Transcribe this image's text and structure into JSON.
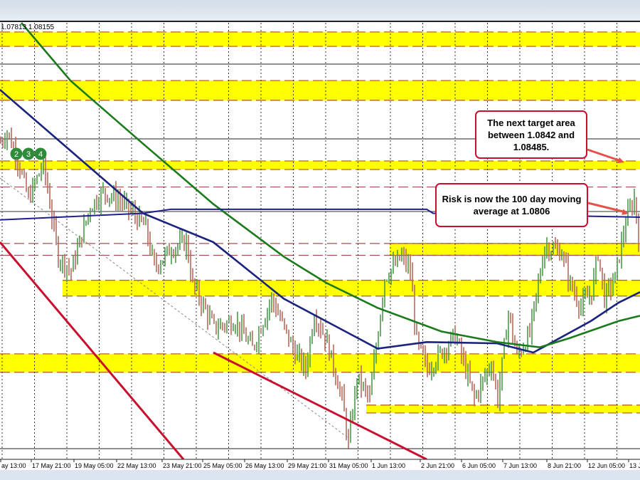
{
  "header": {
    "ohlc_text": "1.07813 1.08155"
  },
  "colors": {
    "band": "#ffff00",
    "level_line": "#c0392b",
    "ma_blue": "#1a237e",
    "ma_green": "#1b7a1b",
    "ma_100day": "#1f1f8f",
    "trendline": "#c8102e",
    "bull": "#4c9a4c",
    "bear": "#b86a5e"
  },
  "annotations": [
    {
      "text": "The next target area between 1.0842 and 1.08485.",
      "level": 1.0845
    },
    {
      "text": "Risk is now the 100 day moving average at 1.0806",
      "level": 1.0806
    }
  ],
  "markers": [
    "2",
    "3",
    "4"
  ],
  "chart_data": {
    "type": "candlestick",
    "title": "",
    "x_tick_labels": [
      "ay 13:00",
      "17 May 21:00",
      "19 May 05:00",
      "22 May 13:00",
      "23 May 21:00",
      "25 May 05:00",
      "26 May 13:00",
      "29 May 21:00",
      "31 May 05:00",
      "1 Jun 13:00",
      "2 Jun 21:00",
      "6 Jun 05:00",
      "7 Jun 13:00",
      "8 Jun 21:00",
      "12 Jun 05:00",
      "13 J"
    ],
    "ylim": [
      1.0622,
      1.0954
    ],
    "grid": true,
    "close_path": [
      [
        0,
        1.0863
      ],
      [
        3,
        1.0871
      ],
      [
        7,
        1.0855
      ],
      [
        13,
        1.082
      ],
      [
        20,
        1.0847
      ],
      [
        27,
        1.0776
      ],
      [
        33,
        1.0765
      ],
      [
        42,
        1.0814
      ],
      [
        48,
        1.0825
      ],
      [
        55,
        1.082
      ],
      [
        62,
        1.0809
      ],
      [
        68,
        1.0798
      ],
      [
        72,
        1.0768
      ],
      [
        80,
        1.0782
      ],
      [
        87,
        1.0787
      ],
      [
        90,
        1.0755
      ],
      [
        100,
        1.0722
      ],
      [
        110,
        1.0727
      ],
      [
        118,
        1.0706
      ],
      [
        127,
        1.0744
      ],
      [
        137,
        1.0706
      ],
      [
        143,
        1.069
      ],
      [
        147,
        1.0733
      ],
      [
        153,
        1.0711
      ],
      [
        160,
        1.0668
      ],
      [
        163,
        1.0633
      ],
      [
        167,
        1.0684
      ],
      [
        173,
        1.0668
      ],
      [
        180,
        1.076
      ],
      [
        188,
        1.0776
      ],
      [
        192,
        1.0765
      ],
      [
        195,
        1.0711
      ],
      [
        200,
        1.069
      ],
      [
        208,
        1.0706
      ],
      [
        213,
        1.0717
      ],
      [
        222,
        1.0668
      ],
      [
        230,
        1.0695
      ],
      [
        233,
        1.0668
      ],
      [
        238,
        1.0733
      ],
      [
        242,
        1.07
      ],
      [
        248,
        1.0717
      ],
      [
        255,
        1.0784
      ],
      [
        263,
        1.0779
      ],
      [
        267,
        1.0755
      ],
      [
        272,
        1.0738
      ],
      [
        277,
        1.0749
      ],
      [
        280,
        1.0779
      ],
      [
        283,
        1.0744
      ],
      [
        288,
        1.076
      ],
      [
        293,
        1.0803
      ],
      [
        297,
        1.082
      ],
      [
        299,
        1.0792
      ]
    ],
    "support_resistance_bands": [
      [
        1.0936,
        1.0947
      ],
      [
        1.0895,
        1.091
      ],
      [
        1.08423,
        1.08488
      ],
      [
        1.0777,
        1.0786
      ],
      [
        1.0746,
        1.0758
      ],
      [
        1.0688,
        1.0702
      ],
      [
        1.0657,
        1.0663
      ]
    ],
    "dashed_levels": [
      1.0829,
      1.0786,
      1.0777
    ],
    "moving_averages": [
      {
        "color": "blue",
        "values": [
          [
            0,
            1.0903
          ],
          [
            67,
            1.0809
          ],
          [
            100,
            1.0787
          ],
          [
            133,
            1.0744
          ],
          [
            177,
            1.0706
          ],
          [
            200,
            1.0711
          ],
          [
            233,
            1.071
          ],
          [
            250,
            1.0703
          ],
          [
            277,
            1.0727
          ],
          [
            290,
            1.0741
          ],
          [
            300,
            1.0749
          ]
        ]
      },
      {
        "color": "green",
        "values": [
          [
            10,
            1.0954
          ],
          [
            33,
            1.091
          ],
          [
            67,
            1.0862
          ],
          [
            100,
            1.0816
          ],
          [
            133,
            1.0776
          ],
          [
            153,
            1.0756
          ],
          [
            177,
            1.0737
          ],
          [
            207,
            1.0719
          ],
          [
            233,
            1.0711
          ],
          [
            253,
            1.0707
          ],
          [
            267,
            1.0714
          ],
          [
            290,
            1.0727
          ],
          [
            300,
            1.0731
          ]
        ]
      },
      {
        "color": "100-day",
        "values": [
          [
            0,
            1.0804
          ],
          [
            67,
            1.0809
          ],
          [
            80,
            1.0812
          ],
          [
            200,
            1.0812
          ],
          [
            203,
            1.0809
          ],
          [
            300,
            1.0806
          ]
        ]
      }
    ]
  }
}
